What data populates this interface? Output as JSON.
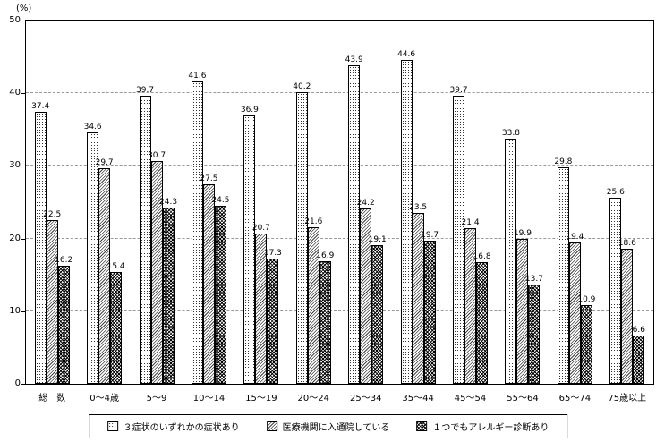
{
  "chart_data": {
    "type": "bar",
    "title": "",
    "ylabel": "(%)",
    "xlabel": "",
    "ylim": [
      0,
      50
    ],
    "ytick_step": 10,
    "yticks": [
      0,
      10,
      20,
      30,
      40,
      50
    ],
    "grid": "horizontal-dashed",
    "legend_position": "bottom",
    "categories": [
      "総　数",
      "0～4歳",
      "5～9",
      "10～14",
      "15～19",
      "20～24",
      "25～34",
      "35～44",
      "45～54",
      "55～64",
      "65～74",
      "75歳以上"
    ],
    "series": [
      {
        "key": "any-of-3-symptoms",
        "name": "３症状のいずれかの症状あり",
        "pattern": "dotted",
        "values": [
          37.4,
          34.6,
          39.7,
          41.6,
          36.9,
          40.2,
          43.9,
          44.6,
          39.7,
          33.8,
          29.8,
          25.6
        ]
      },
      {
        "key": "visiting-medical-institution",
        "name": "医療機関に入通院している",
        "pattern": "fine-diagonal-hatch",
        "values": [
          22.5,
          29.7,
          30.7,
          27.5,
          20.7,
          21.6,
          24.2,
          23.5,
          21.4,
          19.9,
          19.4,
          18.6
        ]
      },
      {
        "key": "allergy-diagnosis",
        "name": "１つでもアレルギー診断あり",
        "pattern": "dark-crosshatch",
        "values": [
          16.2,
          15.4,
          24.3,
          24.5,
          17.3,
          16.9,
          19.1,
          19.7,
          16.8,
          13.7,
          10.9,
          6.6
        ]
      }
    ]
  }
}
